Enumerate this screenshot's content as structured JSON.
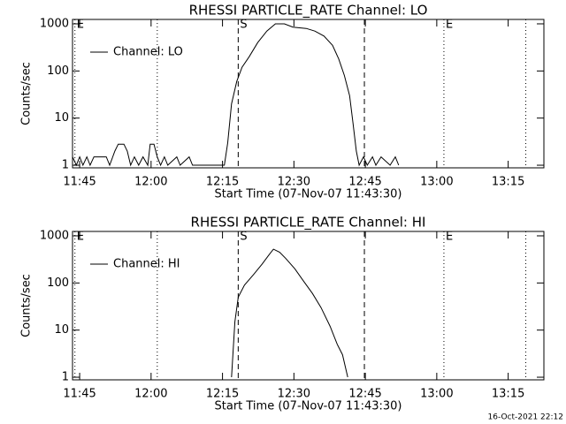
{
  "chart_data": [
    {
      "type": "line",
      "title": "RHESSI PARTICLE_RATE Channel: LO",
      "x_label": "Start Time (07-Nov-07 11:43:30)",
      "y_label": "Counts/sec",
      "x": [
        703.5,
        704.3,
        705,
        705.7,
        706.5,
        707.2,
        708,
        708.7,
        710.6,
        711.3,
        712.4,
        713.1,
        714.3,
        715,
        715.7,
        716.5,
        717.4,
        718.3,
        719.3,
        719.8,
        720.6,
        721.3,
        722,
        722.8,
        723.5,
        725.4,
        726.1,
        728,
        728.7,
        735.4,
        736.1,
        736.9,
        738,
        739.1,
        740.6,
        742.4,
        744.3,
        746.1,
        748,
        749.8,
        752.6,
        754.4,
        756.3,
        758.1,
        759.4,
        760.6,
        761.7,
        762.4,
        763.1,
        763.7,
        764.6,
        765.4,
        766.5,
        767.2,
        768.3,
        770.2,
        771.3,
        772
      ],
      "series": [
        {
          "name": "Channel: LO",
          "color": "#000000",
          "values": [
            1.5,
            1,
            1.5,
            1,
            1.5,
            1,
            1.5,
            1.5,
            1.5,
            1,
            2,
            2.8,
            2.8,
            2,
            1,
            1.5,
            1,
            1.5,
            1,
            2.8,
            2.8,
            1.5,
            1,
            1.5,
            1,
            1.5,
            1,
            1.5,
            1,
            1,
            3,
            20,
            60,
            120,
            200,
            400,
            700,
            1000,
            1000,
            850,
            800,
            700,
            550,
            350,
            180,
            80,
            30,
            8,
            2,
            1,
            1.5,
            1,
            1.5,
            1,
            1.5,
            1,
            1.5,
            1
          ]
        }
      ],
      "xlim": [
        703.5,
        802.5
      ],
      "xticks": [
        {
          "value": 705,
          "label": "11:45"
        },
        {
          "value": 720,
          "label": "12:00"
        },
        {
          "value": 735,
          "label": "12:15"
        },
        {
          "value": 750,
          "label": "12:30"
        },
        {
          "value": 765,
          "label": "12:45"
        },
        {
          "value": 780,
          "label": "13:00"
        },
        {
          "value": 795,
          "label": "13:15"
        }
      ],
      "ylim": [
        0.88,
        1240
      ],
      "yticks": [
        1,
        10,
        100,
        1000
      ],
      "log_y": true,
      "legend": "upper left",
      "vlines": [
        {
          "x": 704,
          "style": "dotted",
          "label": "E"
        },
        {
          "x": 721.3,
          "style": "dotted"
        },
        {
          "x": 738.3,
          "style": "dashed",
          "label": "S"
        },
        {
          "x": 764.8,
          "style": "dashed"
        },
        {
          "x": 781.5,
          "style": "dotted",
          "label": "E"
        },
        {
          "x": 798.7,
          "style": "dotted"
        }
      ]
    },
    {
      "type": "line",
      "title": "RHESSI PARTICLE_RATE Channel: HI",
      "x_label": "Start Time (07-Nov-07 11:43:30)",
      "y_label": "Counts/sec",
      "x": [
        736.9,
        737.6,
        738.3,
        739.6,
        741.5,
        743.3,
        744.8,
        745.7,
        747,
        748.3,
        750.2,
        752,
        753.9,
        755.7,
        757.6,
        759.1,
        760.2,
        761.3
      ],
      "series": [
        {
          "name": "Channel: HI",
          "color": "#000000",
          "values": [
            1,
            15,
            50,
            90,
            150,
            250,
            400,
            520,
            450,
            330,
            200,
            110,
            60,
            30,
            12,
            5,
            3,
            1
          ]
        }
      ],
      "xlim": [
        703.5,
        802.5
      ],
      "xticks": [
        {
          "value": 705,
          "label": "11:45"
        },
        {
          "value": 720,
          "label": "12:00"
        },
        {
          "value": 735,
          "label": "12:15"
        },
        {
          "value": 750,
          "label": "12:30"
        },
        {
          "value": 765,
          "label": "12:45"
        },
        {
          "value": 780,
          "label": "13:00"
        },
        {
          "value": 795,
          "label": "13:15"
        }
      ],
      "ylim": [
        0.88,
        1240
      ],
      "yticks": [
        1,
        10,
        100,
        1000
      ],
      "log_y": true,
      "legend": "upper left",
      "vlines": [
        {
          "x": 704,
          "style": "dotted",
          "label": "E"
        },
        {
          "x": 721.3,
          "style": "dotted"
        },
        {
          "x": 738.3,
          "style": "dashed",
          "label": "S"
        },
        {
          "x": 764.8,
          "style": "dashed"
        },
        {
          "x": 781.5,
          "style": "dotted",
          "label": "E"
        },
        {
          "x": 798.7,
          "style": "dotted"
        }
      ]
    }
  ],
  "footer": "16-Oct-2021 22:12"
}
